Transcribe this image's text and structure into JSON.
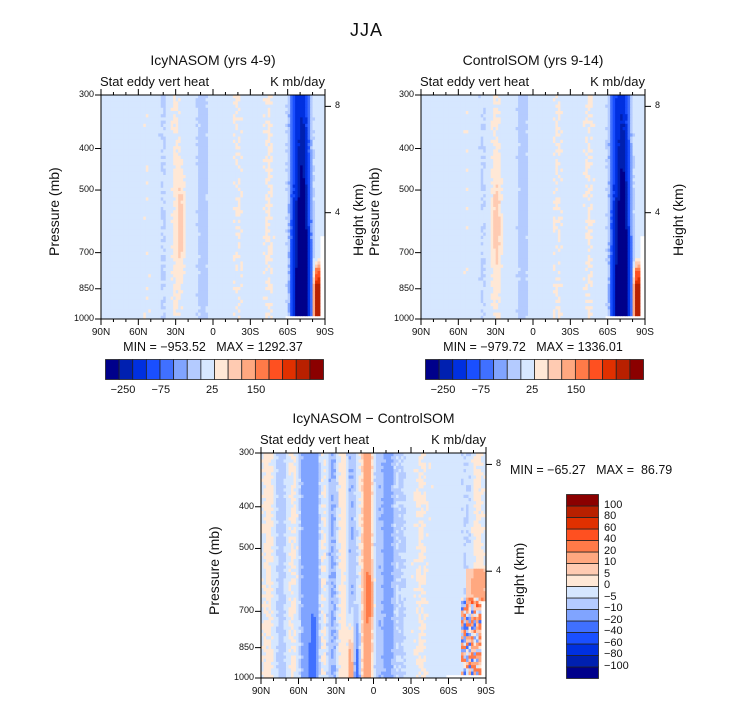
{
  "figure_title": "JJA",
  "colors": {
    "levels_colors": [
      "#00008b",
      "#0020b0",
      "#0030e0",
      "#1a4fff",
      "#4070ff",
      "#80a4ff",
      "#b4cbff",
      "#d6e7ff",
      "#ffe8d6",
      "#ffcbb2",
      "#ffa880",
      "#ff7a48",
      "#ff5020",
      "#e03000",
      "#b82000",
      "#8b0000"
    ]
  },
  "chart_data": [
    {
      "type": "heatmap",
      "title": "IcyNASOM (yrs 4-9)",
      "subtitle_left": "Stat eddy vert heat",
      "subtitle_right": "K mb/day",
      "ylabel": "Pressure (mb)",
      "ylabel_right": "Height (km)",
      "x_ticks": [
        "90N",
        "60N",
        "30N",
        "0",
        "30S",
        "60S",
        "90S"
      ],
      "y_ticks": [
        "300",
        "400",
        "500",
        "700",
        "850",
        "1000"
      ],
      "y_ticks_right": [
        "8",
        "4"
      ],
      "y_range": [
        300,
        1000
      ],
      "x_range": [
        "90N",
        "90S"
      ],
      "min_max": "MIN = −953.52   MAX = 1292.37",
      "min": -953.52,
      "max": 1292.37,
      "colorbar": {
        "orientation": "horizontal",
        "labels": [
          "−250",
          "−75",
          "25",
          "150"
        ]
      },
      "features": [
        {
          "lat": 25,
          "p_top": 420,
          "p_bot": 760,
          "value": 12,
          "note": "warm tongue near 30N"
        },
        {
          "lat": -72,
          "p_top": 300,
          "p_bot": 1000,
          "value": -250,
          "note": "strong negative band 60S-80S"
        },
        {
          "lat": -82,
          "p_top": 780,
          "p_bot": 960,
          "value": 200,
          "note": "positive near 85S surface"
        }
      ]
    },
    {
      "type": "heatmap",
      "title": "ControlSOM (yrs 9-14)",
      "subtitle_left": "Stat eddy vert heat",
      "subtitle_right": "K mb/day",
      "ylabel": "Pressure (mb)",
      "ylabel_right": "Height (km)",
      "x_ticks": [
        "90N",
        "60N",
        "30N",
        "0",
        "30S",
        "60S",
        "90S"
      ],
      "y_ticks": [
        "300",
        "400",
        "500",
        "700",
        "850",
        "1000"
      ],
      "y_ticks_right": [
        "8",
        "4"
      ],
      "y_range": [
        300,
        1000
      ],
      "x_range": [
        "90N",
        "90S"
      ],
      "min_max": "MIN = −979.72   MAX = 1336.01",
      "min": -979.72,
      "max": 1336.01,
      "colorbar": {
        "orientation": "horizontal",
        "labels": [
          "−250",
          "−75",
          "25",
          "150"
        ]
      },
      "features": [
        {
          "lat": 29,
          "p_top": 400,
          "p_bot": 760,
          "value": 15,
          "note": "warm tongue near 30N"
        },
        {
          "lat": -72,
          "p_top": 300,
          "p_bot": 1000,
          "value": -250,
          "note": "strong negative band 60S-80S"
        },
        {
          "lat": -82,
          "p_top": 780,
          "p_bot": 960,
          "value": 200,
          "note": "positive near 85S surface"
        }
      ]
    },
    {
      "type": "heatmap",
      "title": "IcyNASOM − ControlSOM",
      "subtitle_left": "Stat eddy vert heat",
      "subtitle_right": "K mb/day",
      "ylabel": "Pressure (mb)",
      "ylabel_right": "Height (km)",
      "x_ticks": [
        "90N",
        "60N",
        "30N",
        "0",
        "30S",
        "60S",
        "90S"
      ],
      "y_ticks": [
        "300",
        "400",
        "500",
        "700",
        "850",
        "1000"
      ],
      "y_ticks_right": [
        "8",
        "4"
      ],
      "y_range": [
        300,
        1000
      ],
      "x_range": [
        "90N",
        "90S"
      ],
      "min_max": "MIN = −65.27   MAX =  86.79",
      "min": -65.27,
      "max": 86.79,
      "colorbar": {
        "orientation": "vertical",
        "labels": [
          "100",
          "80",
          "60",
          "40",
          "20",
          "10",
          "5",
          "0",
          "−5",
          "−10",
          "−20",
          "−40",
          "−60",
          "−80",
          "−100"
        ]
      },
      "features": [
        {
          "lat": 50,
          "p_top": 350,
          "p_bot": 950,
          "value": -15,
          "note": "negative column near 50N"
        },
        {
          "lat": 4,
          "p_top": 300,
          "p_bot": 760,
          "value": 15,
          "note": "positive column near equator"
        },
        {
          "lat": -10,
          "p_top": 300,
          "p_bot": 600,
          "value": -8,
          "note": "negative near 10S"
        },
        {
          "lat": -80,
          "p_top": 600,
          "p_bot": 960,
          "value": 20,
          "note": "mixed signal near 80S"
        }
      ]
    }
  ]
}
